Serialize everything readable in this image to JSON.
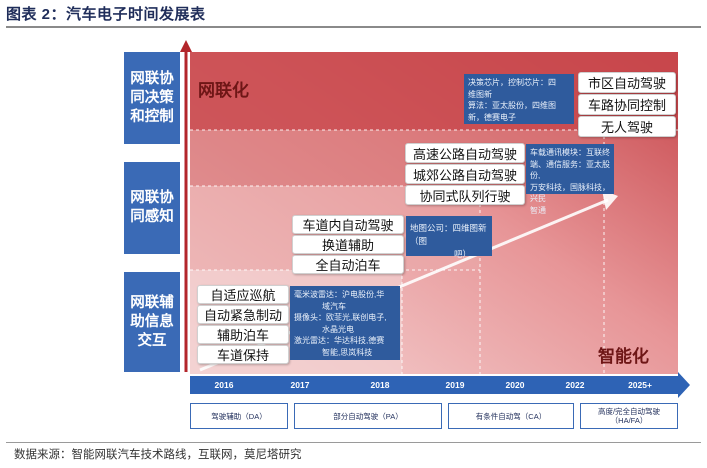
{
  "figure": {
    "title": "图表 2：汽车电子时间发展表",
    "source": "数据来源：智能网联汽车技术路线，互联网，莫尼塔研究"
  },
  "categories": [
    {
      "label_lines": [
        "网联协",
        "同决策",
        "和控制"
      ]
    },
    {
      "label_lines": [
        "网联协",
        "同感知"
      ]
    },
    {
      "label_lines": [
        "网联辅",
        "助信息",
        "交互"
      ]
    }
  ],
  "zones": {
    "top": "网联化",
    "bottom": "智能化"
  },
  "features": {
    "group1": [
      "自适应巡航",
      "自动紧急制动",
      "辅助泊车",
      "车道保持"
    ],
    "group2": [
      "车道内自动驾驶",
      "换道辅助",
      "全自动泊车"
    ],
    "group3": [
      "高速公路自动驾驶",
      "城郊公路自动驾驶",
      "协同式队列行驶"
    ],
    "group4": [
      "市区自动驾驶",
      "车路协同控制",
      "无人驾驶"
    ]
  },
  "notes": {
    "group1": [
      "毫米波雷达：沪电股份,华",
      "域汽车",
      "摄像头：欧菲光,联创电子,",
      "水晶光电",
      "激光雷达：华达科技,德赛",
      "智能,思岚科技"
    ],
    "group2": [
      "地图公司：四维图新（图",
      "吧）"
    ],
    "group3": [
      "车载通讯模块：互联终",
      "端、通信服务：亚太股份,",
      "万安科技，国脉科技，兴民",
      "智通"
    ],
    "group4": [
      "决策芯片，控制芯片：四",
      "维图新",
      "算法：亚太股份，四维图",
      "新，德赛电子"
    ]
  },
  "timeline": {
    "years": [
      "2016",
      "2017",
      "2018",
      "2019",
      "2020",
      "2022",
      "2025+"
    ]
  },
  "levels": [
    {
      "lines": [
        "驾驶辅助（DA）"
      ]
    },
    {
      "lines": [
        "部分自动驾驶（PA）"
      ]
    },
    {
      "lines": [
        "有条件自动驾（CA）"
      ]
    },
    {
      "lines": [
        "高度/完全自动驾驶",
        "（HA/FA）"
      ]
    }
  ],
  "colors": {
    "category_blue": "#3a6ab6",
    "note_blue": "#2f5b9d",
    "timeline_blue": "#2e63b5",
    "zone_top_red": "#c8474b",
    "zone_bottom_red": "#f1c9c9",
    "arrow_red": "#b3262b"
  }
}
